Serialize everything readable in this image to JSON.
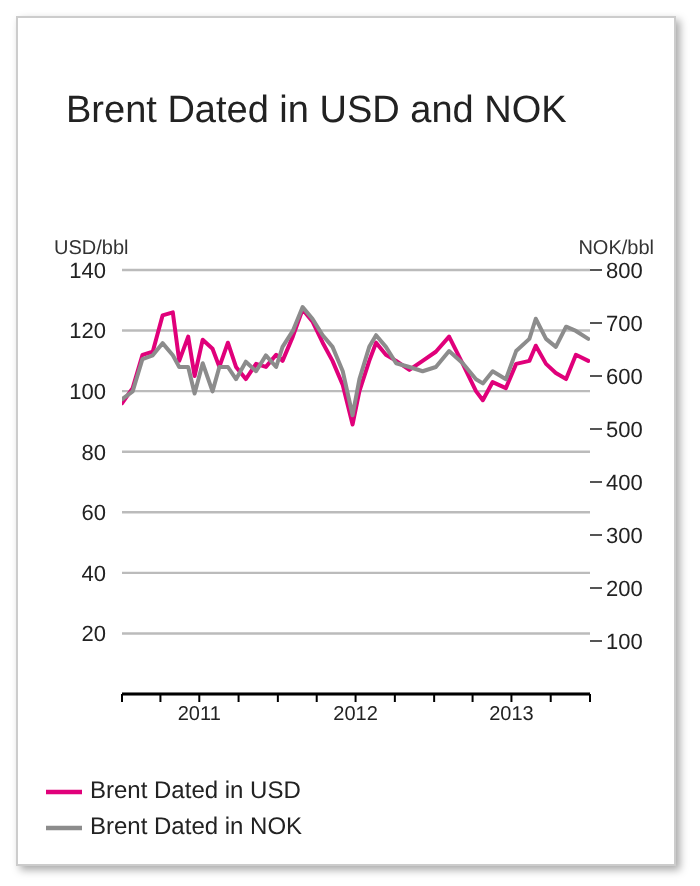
{
  "chart_data": {
    "type": "line",
    "title": "Brent Dated in USD and NOK",
    "ylabel": "USD/bbl",
    "y2label": "NOK/bbl",
    "x": [
      "2011-01-01",
      "2011-01-26",
      "2011-02-18",
      "2011-03-14",
      "2011-04-06",
      "2011-04-30",
      "2011-05-15",
      "2011-06-05",
      "2011-06-20",
      "2011-07-09",
      "2011-08-01",
      "2011-08-17",
      "2011-09-06",
      "2011-09-25",
      "2011-10-18",
      "2011-11-11",
      "2011-12-04",
      "2011-12-28",
      "2012-01-12",
      "2012-02-05",
      "2012-02-28",
      "2012-03-22",
      "2012-04-15",
      "2012-05-08",
      "2012-06-01",
      "2012-06-24",
      "2012-07-10",
      "2012-08-02",
      "2012-08-18",
      "2012-09-10",
      "2012-10-04",
      "2012-11-04",
      "2012-12-05",
      "2013-01-05",
      "2013-02-05",
      "2013-03-09",
      "2013-04-09",
      "2013-04-25",
      "2013-05-18",
      "2013-06-18",
      "2013-07-12",
      "2013-08-12",
      "2013-08-27",
      "2013-09-20",
      "2013-10-13",
      "2013-11-06",
      "2013-11-29",
      "2013-12-28"
    ],
    "series": [
      {
        "name": "Brent Dated in USD",
        "color": "#e0007a",
        "values": [
          96,
          101,
          112,
          113,
          125,
          126,
          110,
          118,
          105,
          117,
          114,
          108,
          116,
          108,
          104,
          109,
          108,
          112,
          110,
          118,
          127,
          123,
          116,
          110,
          102,
          89,
          100,
          110,
          116,
          112,
          110,
          107,
          110,
          113,
          118,
          109,
          100,
          97,
          103,
          101,
          109,
          110,
          115,
          109,
          106,
          104,
          112,
          110
        ]
      },
      {
        "name": "Brent Dated in NOK",
        "color": "#8c8c8c",
        "axis": "y2",
        "values": [
          556,
          571,
          632,
          639,
          662,
          639,
          617,
          617,
          567,
          624,
          571,
          617,
          617,
          594,
          627,
          609,
          639,
          617,
          655,
          685,
          730,
          708,
          677,
          655,
          609,
          526,
          594,
          655,
          677,
          655,
          624,
          617,
          609,
          617,
          647,
          624,
          594,
          586,
          609,
          594,
          647,
          670,
          708,
          670,
          655,
          693,
          685,
          670
        ]
      }
    ],
    "xlim": [
      "2011-01-01",
      "2014-01-01"
    ],
    "xticks": [
      {
        "value": "2011-01-01",
        "label": null
      },
      {
        "value": "2011-04-01",
        "label": null
      },
      {
        "value": "2011-07-01",
        "label": "2011"
      },
      {
        "value": "2011-10-01",
        "label": null
      },
      {
        "value": "2012-01-01",
        "label": null
      },
      {
        "value": "2012-04-01",
        "label": null
      },
      {
        "value": "2012-07-01",
        "label": "2012"
      },
      {
        "value": "2012-10-01",
        "label": null
      },
      {
        "value": "2013-01-01",
        "label": null
      },
      {
        "value": "2013-04-01",
        "label": null
      },
      {
        "value": "2013-07-01",
        "label": "2013"
      },
      {
        "value": "2013-10-01",
        "label": null
      },
      {
        "value": "2014-01-01",
        "label": null
      }
    ],
    "ylim": [
      0,
      140
    ],
    "yticks": [
      20,
      40,
      60,
      80,
      100,
      120,
      140
    ],
    "y2lim": [
      0,
      800
    ],
    "y2ticks": [
      100,
      200,
      300,
      400,
      500,
      600,
      700,
      800
    ],
    "grid": "y",
    "legend": "bottom left",
    "marker": "none",
    "line_style": "solid"
  }
}
